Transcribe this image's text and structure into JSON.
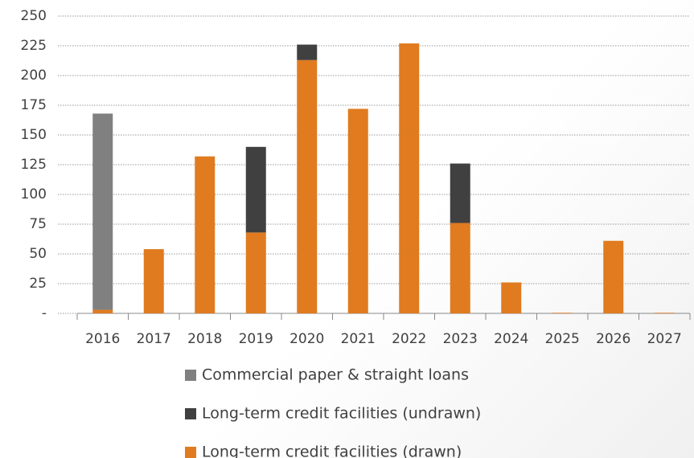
{
  "chart_data": {
    "type": "stacked_bar",
    "categories": [
      "2016",
      "2017",
      "2018",
      "2019",
      "2020",
      "2021",
      "2022",
      "2023",
      "2024",
      "2025",
      "2026",
      "2027"
    ],
    "series": [
      {
        "name": "Commercial paper & straight loans",
        "color": "#808080",
        "values": [
          165,
          0,
          0,
          0,
          0,
          0,
          0,
          0,
          0,
          0,
          0,
          0
        ]
      },
      {
        "name": "Long-term credit facilities (undrawn)",
        "color": "#404040",
        "values": [
          0,
          0,
          0,
          72,
          13,
          0,
          0,
          50,
          0,
          0,
          0,
          0
        ]
      },
      {
        "name": "Long-term credit facilities (drawn)",
        "color": "#e07b20",
        "values": [
          3,
          54,
          132,
          68,
          213,
          172,
          227,
          76,
          26,
          0.5,
          61,
          0.5
        ]
      }
    ],
    "ylim": [
      0,
      250
    ],
    "yticks": [
      {
        "value": 0,
        "label": "-"
      },
      25,
      50,
      75,
      100,
      125,
      150,
      175,
      200,
      225,
      250
    ],
    "grid": true,
    "legend": "bottom"
  }
}
